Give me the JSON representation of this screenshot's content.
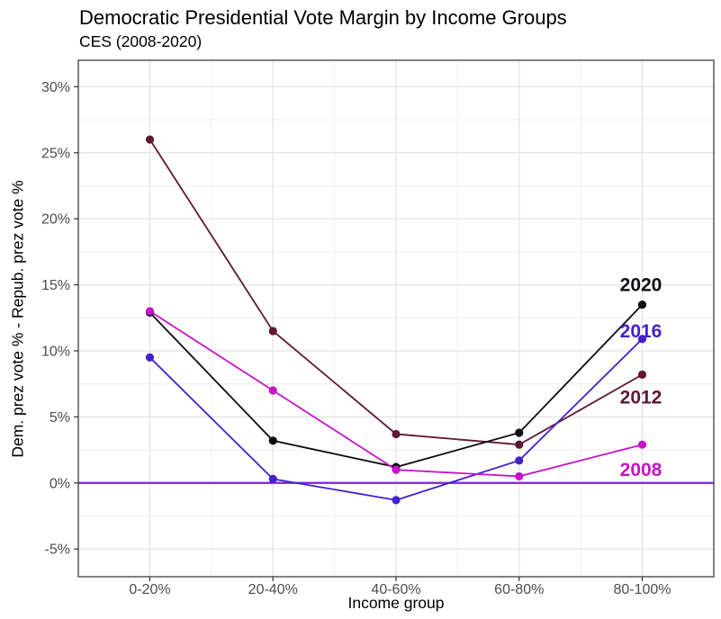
{
  "title": "Democratic Presidential Vote Margin by Income Groups",
  "subtitle": "CES (2008-2020)",
  "chart_data": {
    "type": "line",
    "title": "Democratic Presidential Vote Margin by Income Groups",
    "subtitle": "CES (2008-2020)",
    "xlabel": "Income group",
    "ylabel": "Dem. prez vote % - Repub. prez vote %",
    "categories": [
      "0-20%",
      "20-40%",
      "40-60%",
      "60-80%",
      "80-100%"
    ],
    "series": [
      {
        "name": "2008",
        "color": "#C714C7",
        "values": [
          13.0,
          7.0,
          1.0,
          0.5,
          2.9
        ],
        "label_y": 1.0
      },
      {
        "name": "2012",
        "color": "#5F1735",
        "values": [
          26.0,
          11.5,
          3.7,
          2.9,
          8.2
        ],
        "label_y": 6.5
      },
      {
        "name": "2016",
        "color": "#4420CB",
        "values": [
          9.5,
          0.3,
          -1.3,
          1.7,
          10.9
        ],
        "label_y": 11.5
      },
      {
        "name": "2020",
        "color": "#0D0D12",
        "values": [
          12.9,
          3.2,
          1.2,
          3.8,
          13.5
        ],
        "label_y": 15.0
      }
    ],
    "draw_order": [
      "2012",
      "2016",
      "2020",
      "2008"
    ],
    "yticks": [
      -5,
      0,
      5,
      10,
      15,
      20,
      25,
      30
    ],
    "ytick_suffix": "%",
    "ylim": [
      -7.1,
      32.0
    ],
    "hline": {
      "y": 0,
      "color": "#7D22D8"
    },
    "grid": {
      "major": "#E2E2E2",
      "minor": "#F0F0F0",
      "minor_y_interval": 2.5,
      "minor_x_midpoints": true
    },
    "legend_position": "direct-labels-right",
    "styles": {
      "panel_border": "#4D4D4D",
      "tick_color": "#333333",
      "tick_label_color": "#4D4D4D",
      "point_radius": 4.6,
      "line_width": 1.8
    }
  }
}
